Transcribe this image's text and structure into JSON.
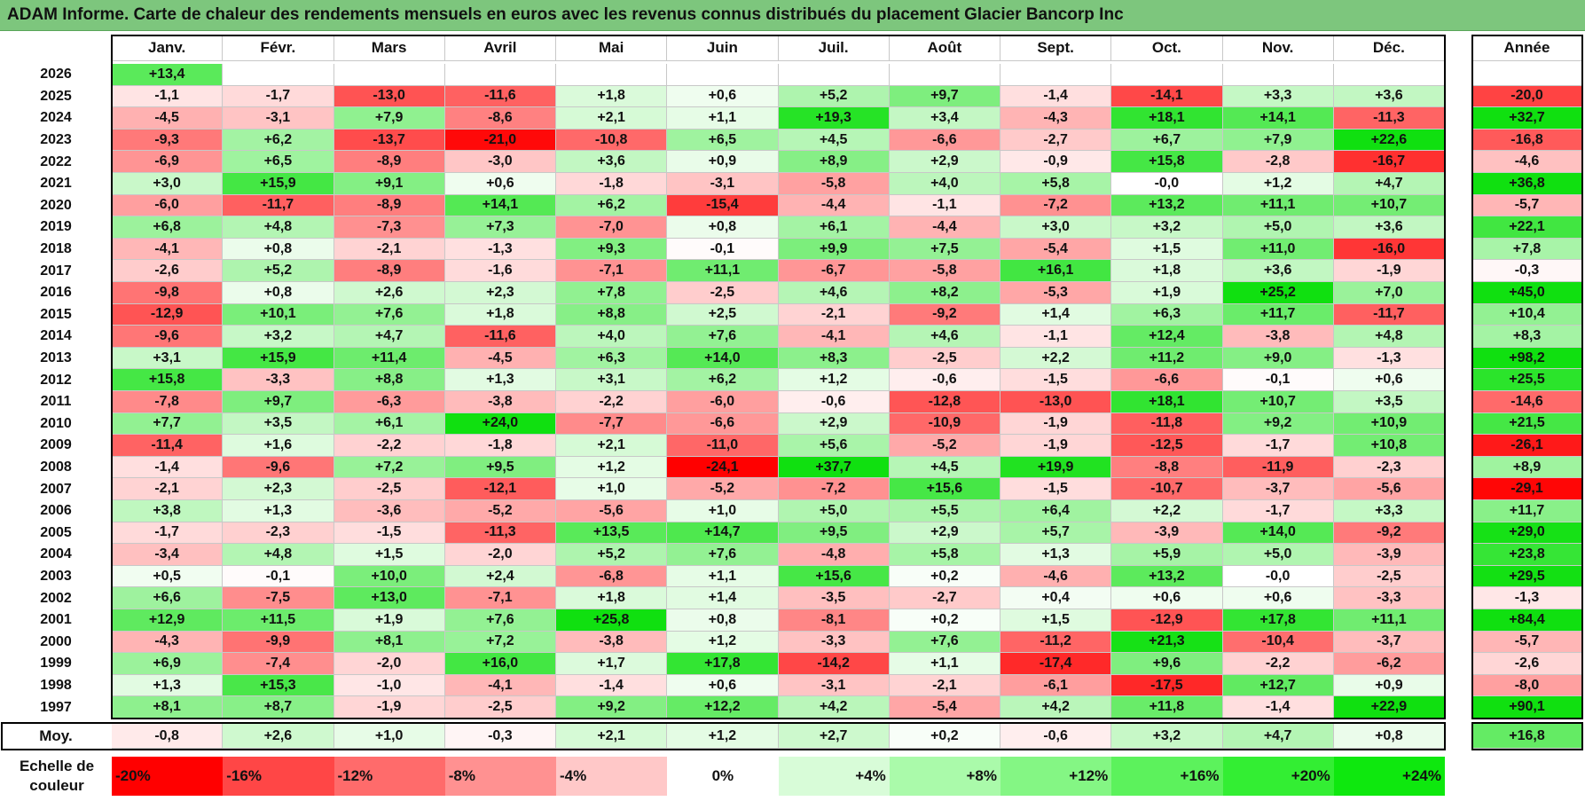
{
  "title": "ADAM Informe. Carte de chaleur des rendements mensuels en euros avec les revenus connus distribués du placement Glacier Bancorp Inc",
  "chart_data": {
    "type": "heatmap",
    "title": "ADAM Informe. Carte de chaleur des rendements mensuels en euros avec les revenus connus distribués du placement Glacier Bancorp Inc",
    "months": [
      "Janv.",
      "Févr.",
      "Mars",
      "Avril",
      "Mai",
      "Juin",
      "Juil.",
      "Août",
      "Sept.",
      "Oct.",
      "Nov.",
      "Déc."
    ],
    "year_header": "Année",
    "rows": [
      {
        "year": "2026",
        "values": [
          "+13,4",
          "",
          "",
          "",
          "",
          "",
          "",
          "",
          "",
          "",
          "",
          ""
        ],
        "annual": ""
      },
      {
        "year": "2025",
        "values": [
          "-1,1",
          "-1,7",
          "-13,0",
          "-11,6",
          "+1,8",
          "+0,6",
          "+5,2",
          "+9,7",
          "-1,4",
          "-14,1",
          "+3,3",
          "+3,6"
        ],
        "annual": "-20,0"
      },
      {
        "year": "2024",
        "values": [
          "-4,5",
          "-3,1",
          "+7,9",
          "-8,6",
          "+2,1",
          "+1,1",
          "+19,3",
          "+3,4",
          "-4,3",
          "+18,1",
          "+14,1",
          "-11,3"
        ],
        "annual": "+32,7"
      },
      {
        "year": "2023",
        "values": [
          "-9,3",
          "+6,2",
          "-13,7",
          "-21,0",
          "-10,8",
          "+6,5",
          "+4,5",
          "-6,6",
          "-2,7",
          "+6,7",
          "+7,9",
          "+22,6"
        ],
        "annual": "-16,8"
      },
      {
        "year": "2022",
        "values": [
          "-6,9",
          "+6,5",
          "-8,9",
          "-3,0",
          "+3,6",
          "+0,9",
          "+8,9",
          "+2,9",
          "-0,9",
          "+15,8",
          "-2,8",
          "-16,7"
        ],
        "annual": "-4,6"
      },
      {
        "year": "2021",
        "values": [
          "+3,0",
          "+15,9",
          "+9,1",
          "+0,6",
          "-1,8",
          "-3,1",
          "-5,8",
          "+4,0",
          "+5,8",
          "-0,0",
          "+1,2",
          "+4,7"
        ],
        "annual": "+36,8"
      },
      {
        "year": "2020",
        "values": [
          "-6,0",
          "-11,7",
          "-8,9",
          "+14,1",
          "+6,2",
          "-15,4",
          "-4,4",
          "-1,1",
          "-7,2",
          "+13,2",
          "+11,1",
          "+10,7"
        ],
        "annual": "-5,7"
      },
      {
        "year": "2019",
        "values": [
          "+6,8",
          "+4,8",
          "-7,3",
          "+7,3",
          "-7,0",
          "+0,8",
          "+6,1",
          "-4,4",
          "+3,0",
          "+3,2",
          "+5,0",
          "+3,6"
        ],
        "annual": "+22,1"
      },
      {
        "year": "2018",
        "values": [
          "-4,1",
          "+0,8",
          "-2,1",
          "-1,3",
          "+9,3",
          "-0,1",
          "+9,9",
          "+7,5",
          "-5,4",
          "+1,5",
          "+11,0",
          "-16,0"
        ],
        "annual": "+7,8"
      },
      {
        "year": "2017",
        "values": [
          "-2,6",
          "+5,2",
          "-8,9",
          "-1,6",
          "-7,1",
          "+11,1",
          "-6,7",
          "-5,8",
          "+16,1",
          "+1,8",
          "+3,6",
          "-1,9"
        ],
        "annual": "-0,3"
      },
      {
        "year": "2016",
        "values": [
          "-9,8",
          "+0,8",
          "+2,6",
          "+2,3",
          "+7,8",
          "-2,5",
          "+4,6",
          "+8,2",
          "-5,3",
          "+1,9",
          "+25,2",
          "+7,0"
        ],
        "annual": "+45,0"
      },
      {
        "year": "2015",
        "values": [
          "-12,9",
          "+10,1",
          "+7,6",
          "+1,8",
          "+8,8",
          "+2,5",
          "-2,1",
          "-9,2",
          "+1,4",
          "+6,3",
          "+11,7",
          "-11,7"
        ],
        "annual": "+10,4"
      },
      {
        "year": "2014",
        "values": [
          "-9,6",
          "+3,2",
          "+4,7",
          "-11,6",
          "+4,0",
          "+7,6",
          "-4,1",
          "+4,6",
          "-1,1",
          "+12,4",
          "-3,8",
          "+4,8"
        ],
        "annual": "+8,3"
      },
      {
        "year": "2013",
        "values": [
          "+3,1",
          "+15,9",
          "+11,4",
          "-4,5",
          "+6,3",
          "+14,0",
          "+8,3",
          "-2,5",
          "+2,2",
          "+11,2",
          "+9,0",
          "-1,3"
        ],
        "annual": "+98,2"
      },
      {
        "year": "2012",
        "values": [
          "+15,8",
          "-3,3",
          "+8,8",
          "+1,3",
          "+3,1",
          "+6,2",
          "+1,2",
          "-0,6",
          "-1,5",
          "-6,6",
          "-0,1",
          "+0,6"
        ],
        "annual": "+25,5"
      },
      {
        "year": "2011",
        "values": [
          "-7,8",
          "+9,7",
          "-6,3",
          "-3,8",
          "-2,2",
          "-6,0",
          "-0,6",
          "-12,8",
          "-13,0",
          "+18,1",
          "+10,7",
          "+3,5"
        ],
        "annual": "-14,6"
      },
      {
        "year": "2010",
        "values": [
          "+7,7",
          "+3,5",
          "+6,1",
          "+24,0",
          "-7,7",
          "-6,6",
          "+2,9",
          "-10,9",
          "-1,9",
          "-11,8",
          "+9,2",
          "+10,9"
        ],
        "annual": "+21,5"
      },
      {
        "year": "2009",
        "values": [
          "-11,4",
          "+1,6",
          "-2,2",
          "-1,8",
          "+2,1",
          "-11,0",
          "+5,6",
          "-5,2",
          "-1,9",
          "-12,5",
          "-1,7",
          "+10,8"
        ],
        "annual": "-26,1"
      },
      {
        "year": "2008",
        "values": [
          "-1,4",
          "-9,6",
          "+7,2",
          "+9,5",
          "+1,2",
          "-24,1",
          "+37,7",
          "+4,5",
          "+19,9",
          "-8,8",
          "-11,9",
          "-2,3"
        ],
        "annual": "+8,9"
      },
      {
        "year": "2007",
        "values": [
          "-2,1",
          "+2,3",
          "-2,5",
          "-12,1",
          "+1,0",
          "-5,2",
          "-7,2",
          "+15,6",
          "-1,5",
          "-10,7",
          "-3,7",
          "-5,6"
        ],
        "annual": "-29,1"
      },
      {
        "year": "2006",
        "values": [
          "+3,8",
          "+1,3",
          "-3,6",
          "-5,2",
          "-5,6",
          "+1,0",
          "+5,0",
          "+5,5",
          "+6,4",
          "+2,2",
          "-1,7",
          "+3,3"
        ],
        "annual": "+11,7"
      },
      {
        "year": "2005",
        "values": [
          "-1,7",
          "-2,3",
          "-1,5",
          "-11,3",
          "+13,5",
          "+14,7",
          "+9,5",
          "+2,9",
          "+5,7",
          "-3,9",
          "+14,0",
          "-9,2"
        ],
        "annual": "+29,0"
      },
      {
        "year": "2004",
        "values": [
          "-3,4",
          "+4,8",
          "+1,5",
          "-2,0",
          "+5,2",
          "+7,6",
          "-4,8",
          "+5,8",
          "+1,3",
          "+5,9",
          "+5,0",
          "-3,9"
        ],
        "annual": "+23,8"
      },
      {
        "year": "2003",
        "values": [
          "+0,5",
          "-0,1",
          "+10,0",
          "+2,4",
          "-6,8",
          "+1,1",
          "+15,6",
          "+0,2",
          "-4,6",
          "+13,2",
          "-0,0",
          "-2,5"
        ],
        "annual": "+29,5"
      },
      {
        "year": "2002",
        "values": [
          "+6,6",
          "-7,5",
          "+13,0",
          "-7,1",
          "+1,8",
          "+1,4",
          "-3,5",
          "-2,7",
          "+0,4",
          "+0,6",
          "+0,6",
          "-3,3"
        ],
        "annual": "-1,3"
      },
      {
        "year": "2001",
        "values": [
          "+12,9",
          "+11,5",
          "+1,9",
          "+7,6",
          "+25,8",
          "+0,8",
          "-8,1",
          "+0,2",
          "+1,5",
          "-12,9",
          "+17,8",
          "+11,1"
        ],
        "annual": "+84,4"
      },
      {
        "year": "2000",
        "values": [
          "-4,3",
          "-9,9",
          "+8,1",
          "+7,2",
          "-3,8",
          "+1,2",
          "-3,3",
          "+7,6",
          "-11,2",
          "+21,3",
          "-10,4",
          "-3,7"
        ],
        "annual": "-5,7"
      },
      {
        "year": "1999",
        "values": [
          "+6,9",
          "-7,4",
          "-2,0",
          "+16,0",
          "+1,7",
          "+17,8",
          "-14,2",
          "+1,1",
          "-17,4",
          "+9,6",
          "-2,2",
          "-6,2"
        ],
        "annual": "-2,6"
      },
      {
        "year": "1998",
        "values": [
          "+1,3",
          "+15,3",
          "-1,0",
          "-4,1",
          "-1,4",
          "+0,6",
          "-3,1",
          "-2,1",
          "-6,1",
          "-17,5",
          "+12,7",
          "+0,9"
        ],
        "annual": "-8,0"
      },
      {
        "year": "1997",
        "values": [
          "+8,1",
          "+8,7",
          "-1,9",
          "-2,5",
          "+9,2",
          "+12,2",
          "+4,2",
          "-5,4",
          "+4,2",
          "+11,8",
          "-1,4",
          "+22,9"
        ],
        "annual": "+90,1"
      }
    ],
    "average": {
      "label": "Moy.",
      "values": [
        "-0,8",
        "+2,6",
        "+1,0",
        "-0,3",
        "+2,1",
        "+1,2",
        "+2,7",
        "+0,2",
        "-0,6",
        "+3,2",
        "+4,7",
        "+0,8"
      ],
      "annual": "+16,8"
    },
    "color_scale": {
      "label": "Echelle de couleur",
      "steps": [
        "-20%",
        "-16%",
        "-12%",
        "-8%",
        "-4%",
        "0%",
        "+4%",
        "+8%",
        "+12%",
        "+16%",
        "+20%",
        "+24%"
      ],
      "colors": [
        "#ff0000",
        "#ff4646",
        "#ff6b6b",
        "#ff9191",
        "#ffc8c8",
        "#ffffff",
        "#d8fcd8",
        "#aafaaa",
        "#84f684",
        "#5cf25c",
        "#33ee33",
        "#0ee80e"
      ]
    }
  }
}
